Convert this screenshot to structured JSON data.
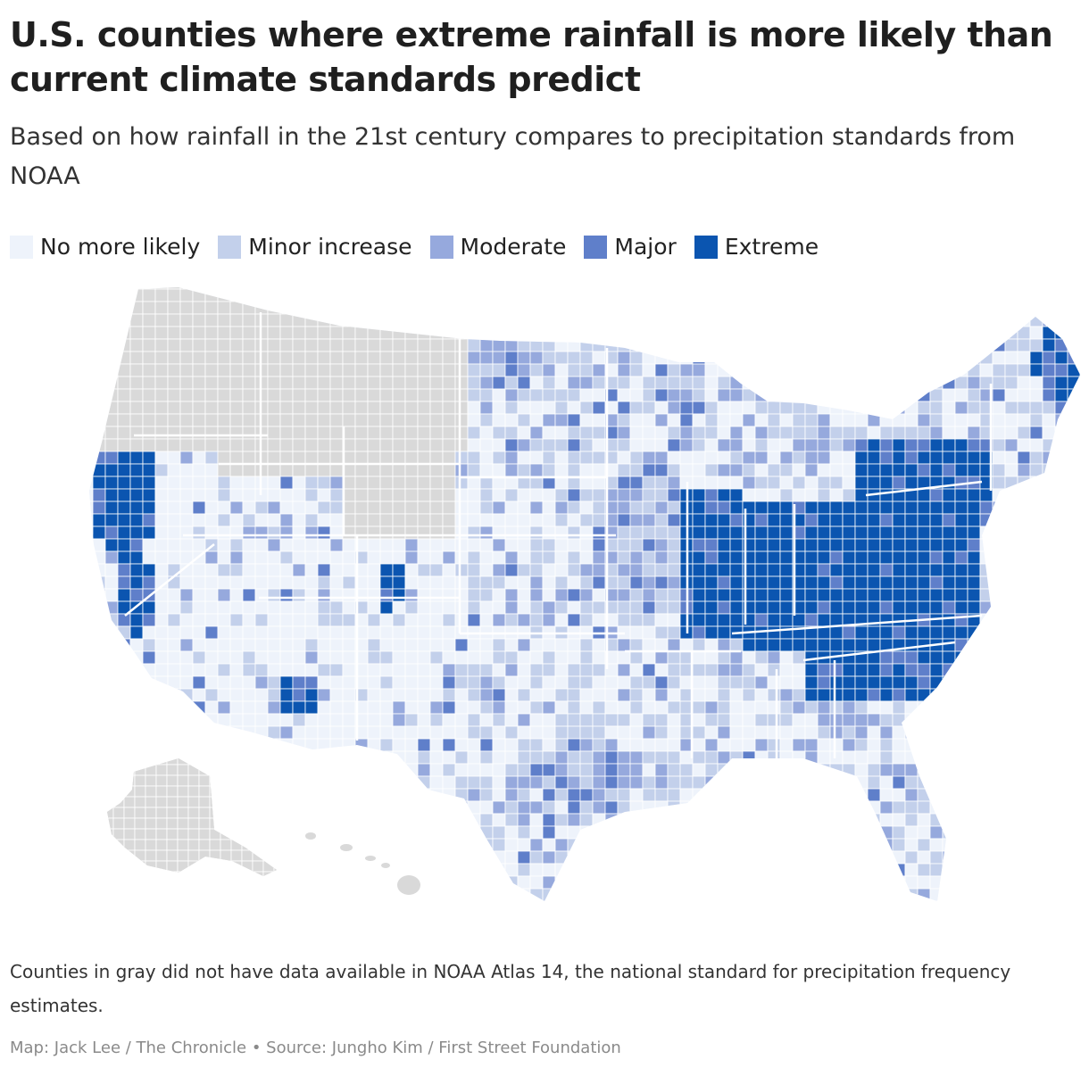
{
  "title": "U.S. counties where extreme rainfall is more likely than current climate standards predict",
  "subtitle": "Based on how rainfall in the 21st century compares to precipitation standards from NOAA",
  "legend": [
    {
      "label": "No more likely",
      "color": "#eef3fb"
    },
    {
      "label": "Minor increase",
      "color": "#c3d0eb"
    },
    {
      "label": "Moderate",
      "color": "#96a9dd"
    },
    {
      "label": "Major",
      "color": "#5f7fca"
    },
    {
      "label": "Extreme",
      "color": "#0b55b0"
    }
  ],
  "no_data_color": "#d9d9d9",
  "note": "Counties in gray did not have data available in NOAA Atlas 14, the national standard for precipitation frequency estimates.",
  "credit": "Map: Jack Lee / The Chronicle • Source: Jungho Kim / First Street Foundation"
}
